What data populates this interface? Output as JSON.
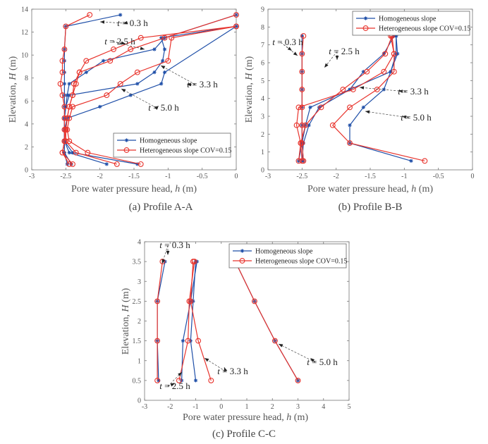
{
  "colors": {
    "homogeneous": "#1f4fa8",
    "heterogeneous": "#e8332c",
    "axis": "#777777",
    "leader": "#444444"
  },
  "legend": {
    "homogeneous": "Homogeneous slope",
    "heterogeneous": "Heterogeneous slope COV=0.15"
  },
  "chart_data": [
    {
      "type": "line",
      "caption": "(a) Profile A-A",
      "xlabel": "Pore water pressure head, h (m)",
      "ylabel": "Elevation, H (m)",
      "xlim": [
        -3,
        0
      ],
      "ylim": [
        0,
        14
      ],
      "xticks": [
        -3,
        -2.5,
        -2,
        -1.5,
        -1,
        -0.5,
        0
      ],
      "yticks": [
        0,
        2,
        4,
        6,
        8,
        10,
        12,
        14
      ],
      "legend_position": "bottom-right",
      "annotations": [
        "t = 0.3 h",
        "t = 2.5 h",
        "t = 3.3 h",
        "t = 5.0 h"
      ],
      "series": [
        {
          "name": "Homogeneous slope",
          "time": "0.3 h",
          "x": [
            -2.48,
            -2.52,
            -2.52,
            -2.52,
            -2.52,
            -2.52,
            -2.52,
            -2.52,
            -2.52,
            -2.52,
            -2.52,
            -2.5,
            -1.7
          ],
          "y": [
            0.5,
            1.5,
            2.5,
            3.5,
            4.5,
            5.5,
            6.5,
            7.5,
            8.5,
            9.5,
            10.5,
            12.5,
            13.5
          ]
        },
        {
          "name": "Homogeneous slope",
          "time": "2.5 h",
          "x": [
            -1.45,
            -2.4,
            -2.52,
            -2.52,
            -2.52,
            -2.5,
            -2.48,
            -2.45,
            -2.2,
            -1.95,
            -1.2,
            -1.05,
            0.0
          ],
          "y": [
            0.5,
            1.5,
            2.5,
            3.5,
            4.5,
            5.5,
            6.5,
            7.5,
            8.5,
            9.5,
            10.5,
            11.5,
            13.5
          ]
        },
        {
          "name": "Homogeneous slope",
          "time": "3.3 h",
          "x": [
            -2.42,
            -2.52,
            -2.52,
            -2.52,
            -2.52,
            -2.5,
            -2.45,
            -1.45,
            -1.2,
            -1.08,
            -1.05,
            -1.1,
            0.0
          ],
          "y": [
            0.5,
            1.5,
            2.5,
            3.5,
            4.5,
            5.5,
            6.5,
            7.5,
            8.5,
            9.5,
            10.5,
            11.5,
            12.5
          ]
        },
        {
          "name": "Homogeneous slope",
          "time": "5.0 h",
          "x": [
            -1.9,
            -2.45,
            -2.52,
            -2.52,
            -2.48,
            -2.0,
            -1.55,
            -1.1,
            -1.05,
            0.0
          ],
          "y": [
            0.5,
            1.5,
            2.5,
            3.5,
            4.5,
            5.5,
            6.5,
            7.5,
            8.5,
            12.5
          ]
        },
        {
          "name": "Heterogeneous slope COV=0.15",
          "time": "0.3 h",
          "x": [
            -2.45,
            -2.55,
            -2.52,
            -2.52,
            -2.52,
            -2.52,
            -2.55,
            -2.58,
            -2.55,
            -2.55,
            -2.52,
            -2.5,
            -2.15
          ],
          "y": [
            0.5,
            1.5,
            2.5,
            3.5,
            4.5,
            5.5,
            6.5,
            7.5,
            8.5,
            9.5,
            10.5,
            12.5,
            13.5
          ]
        },
        {
          "name": "Heterogeneous slope COV=0.15",
          "time": "2.5 h",
          "x": [
            -1.75,
            -2.35,
            -2.5,
            -2.5,
            -2.48,
            -2.45,
            -2.4,
            -2.35,
            -2.3,
            -1.85,
            -1.55,
            -1.05,
            0.0
          ],
          "y": [
            0.5,
            1.5,
            2.5,
            3.5,
            4.5,
            5.5,
            6.5,
            7.5,
            8.5,
            9.5,
            10.5,
            11.5,
            13.5
          ]
        },
        {
          "name": "Heterogeneous slope COV=0.15",
          "time": "3.3 h",
          "x": [
            -2.4,
            -2.55,
            -2.52,
            -2.5,
            -2.48,
            -2.45,
            -2.4,
            -2.38,
            -2.3,
            -2.2,
            -1.8,
            -1.4,
            0.0
          ],
          "y": [
            0.5,
            1.5,
            2.5,
            3.5,
            4.5,
            5.5,
            6.5,
            7.5,
            8.5,
            9.5,
            10.5,
            11.5,
            12.5
          ]
        },
        {
          "name": "Heterogeneous slope COV=0.15",
          "time": "5.0 h",
          "x": [
            -1.4,
            -2.18,
            -2.45,
            -2.48,
            -2.45,
            -2.4,
            -1.9,
            -1.7,
            -1.45,
            -1.0,
            -0.95,
            0.0
          ],
          "y": [
            0.5,
            1.5,
            2.5,
            3.5,
            4.5,
            5.5,
            6.5,
            7.5,
            8.5,
            9.5,
            11.5,
            12.5
          ]
        }
      ]
    },
    {
      "type": "line",
      "caption": "(b) Profile B-B",
      "xlabel": "Pore water pressure head, h (m)",
      "ylabel": "Elevation, H (m)",
      "xlim": [
        -3,
        0
      ],
      "ylim": [
        0,
        9
      ],
      "xticks": [
        -3,
        -2.5,
        -2,
        -1.5,
        -1,
        -0.5,
        0
      ],
      "yticks": [
        0,
        1,
        2,
        3,
        4,
        5,
        6,
        7,
        8,
        9
      ],
      "legend_position": "top-right",
      "annotations": [
        "t = 0.3 h",
        "t = 2.5 h",
        "t = 3.3 h",
        "t = 5.0 h"
      ],
      "series": [
        {
          "name": "Homogeneous slope",
          "time": "0.3 h",
          "x": [
            -2.48,
            -2.5,
            -2.5,
            -2.5,
            -2.5,
            -2.5,
            -2.5,
            -2.5
          ],
          "y": [
            0.5,
            1.5,
            2.5,
            3.5,
            4.5,
            5.5,
            6.5,
            7.5
          ]
        },
        {
          "name": "Homogeneous slope",
          "time": "2.5 h",
          "x": [
            -2.5,
            -2.48,
            -2.4,
            -2.25,
            -1.8,
            -1.6,
            -1.3,
            -1.15
          ],
          "y": [
            0.5,
            1.5,
            2.5,
            3.5,
            4.5,
            5.5,
            6.5,
            7.5
          ]
        },
        {
          "name": "Homogeneous slope",
          "time": "3.3 h",
          "x": [
            -2.55,
            -2.5,
            -2.45,
            -2.38,
            -1.8,
            -1.2,
            -1.12,
            -1.12
          ],
          "y": [
            0.5,
            1.5,
            2.5,
            3.5,
            4.5,
            5.5,
            6.5,
            7.5
          ]
        },
        {
          "name": "Homogeneous slope",
          "time": "5.0 h",
          "x": [
            -0.9,
            -1.8,
            -1.8,
            -1.6,
            -1.3,
            -1.2,
            -1.1,
            -1.12
          ],
          "y": [
            0.5,
            1.5,
            2.5,
            3.5,
            4.5,
            5.5,
            6.5,
            7.5
          ]
        },
        {
          "name": "Heterogeneous slope COV=0.15",
          "time": "0.3 h",
          "x": [
            -2.48,
            -2.5,
            -2.5,
            -2.5,
            -2.5,
            -2.5,
            -2.5,
            -2.48
          ],
          "y": [
            0.5,
            1.5,
            2.5,
            3.5,
            4.5,
            5.5,
            6.5,
            7.5
          ]
        },
        {
          "name": "Heterogeneous slope COV=0.15",
          "time": "2.5 h",
          "x": [
            -2.55,
            -2.52,
            -2.45,
            -2.22,
            -1.9,
            -1.55,
            -1.28,
            -1.18
          ],
          "y": [
            0.5,
            1.5,
            2.5,
            3.5,
            4.5,
            5.5,
            6.5,
            7.5
          ]
        },
        {
          "name": "Heterogeneous slope COV=0.15",
          "time": "3.3 h",
          "x": [
            -2.5,
            -2.52,
            -2.58,
            -2.55,
            -1.75,
            -1.3,
            -1.15,
            -1.2
          ],
          "y": [
            0.5,
            1.5,
            2.5,
            3.5,
            4.5,
            5.5,
            6.5,
            7.5
          ]
        },
        {
          "name": "Heterogeneous slope COV=0.15",
          "time": "5.0 h",
          "x": [
            -0.7,
            -1.8,
            -2.05,
            -1.8,
            -1.4,
            -1.15,
            -1.15,
            -1.18
          ],
          "y": [
            0.5,
            1.5,
            2.5,
            3.5,
            4.5,
            5.5,
            6.5,
            7.5
          ]
        }
      ]
    },
    {
      "type": "line",
      "caption": "(c) Profile C-C",
      "xlabel": "Pore water pressure head, h (m)",
      "ylabel": "Elevation, H (m)",
      "xlim": [
        -3,
        5
      ],
      "ylim": [
        0,
        4
      ],
      "xticks": [
        -3,
        -2,
        -1,
        0,
        1,
        2,
        3,
        4,
        5
      ],
      "yticks": [
        0,
        0.5,
        1,
        1.5,
        2,
        2.5,
        3,
        3.5,
        4
      ],
      "legend_position": "top-right",
      "annotations": [
        "t = 0.3 h",
        "t = 2.5 h",
        "t = 3.3 h",
        "t = 5.0 h"
      ],
      "series": [
        {
          "name": "Homogeneous slope",
          "time": "0.3 h",
          "x": [
            -2.45,
            -2.5,
            -2.5,
            -2.2
          ],
          "y": [
            0.5,
            1.5,
            2.5,
            3.5
          ]
        },
        {
          "name": "Homogeneous slope",
          "time": "2.5 h",
          "x": [
            -1.55,
            -1.5,
            -1.2,
            -0.95
          ],
          "y": [
            0.5,
            1.5,
            2.5,
            3.5
          ]
        },
        {
          "name": "Homogeneous slope",
          "time": "3.3 h",
          "x": [
            -1.0,
            -1.2,
            -1.1,
            -1.0
          ],
          "y": [
            0.5,
            1.5,
            2.5,
            3.5
          ]
        },
        {
          "name": "Homogeneous slope",
          "time": "5.0 h",
          "x": [
            3.0,
            2.1,
            1.3,
            0.55
          ],
          "y": [
            0.5,
            1.5,
            2.5,
            3.5
          ]
        },
        {
          "name": "Heterogeneous slope COV=0.15",
          "time": "0.3 h",
          "x": [
            -2.5,
            -2.5,
            -2.5,
            -2.3
          ],
          "y": [
            0.5,
            1.5,
            2.5,
            3.5
          ]
        },
        {
          "name": "Heterogeneous slope COV=0.15",
          "time": "2.5 h",
          "x": [
            -1.65,
            -1.3,
            -1.25,
            -1.05
          ],
          "y": [
            0.5,
            1.5,
            2.5,
            3.5
          ]
        },
        {
          "name": "Heterogeneous slope COV=0.15",
          "time": "3.3 h",
          "x": [
            -0.4,
            -0.9,
            -1.2,
            -1.1
          ],
          "y": [
            0.5,
            1.5,
            2.5,
            3.5
          ]
        },
        {
          "name": "Heterogeneous slope COV=0.15",
          "time": "5.0 h",
          "x": [
            3.0,
            2.1,
            1.3,
            0.55
          ],
          "y": [
            0.5,
            1.5,
            2.5,
            3.5
          ]
        }
      ]
    }
  ]
}
